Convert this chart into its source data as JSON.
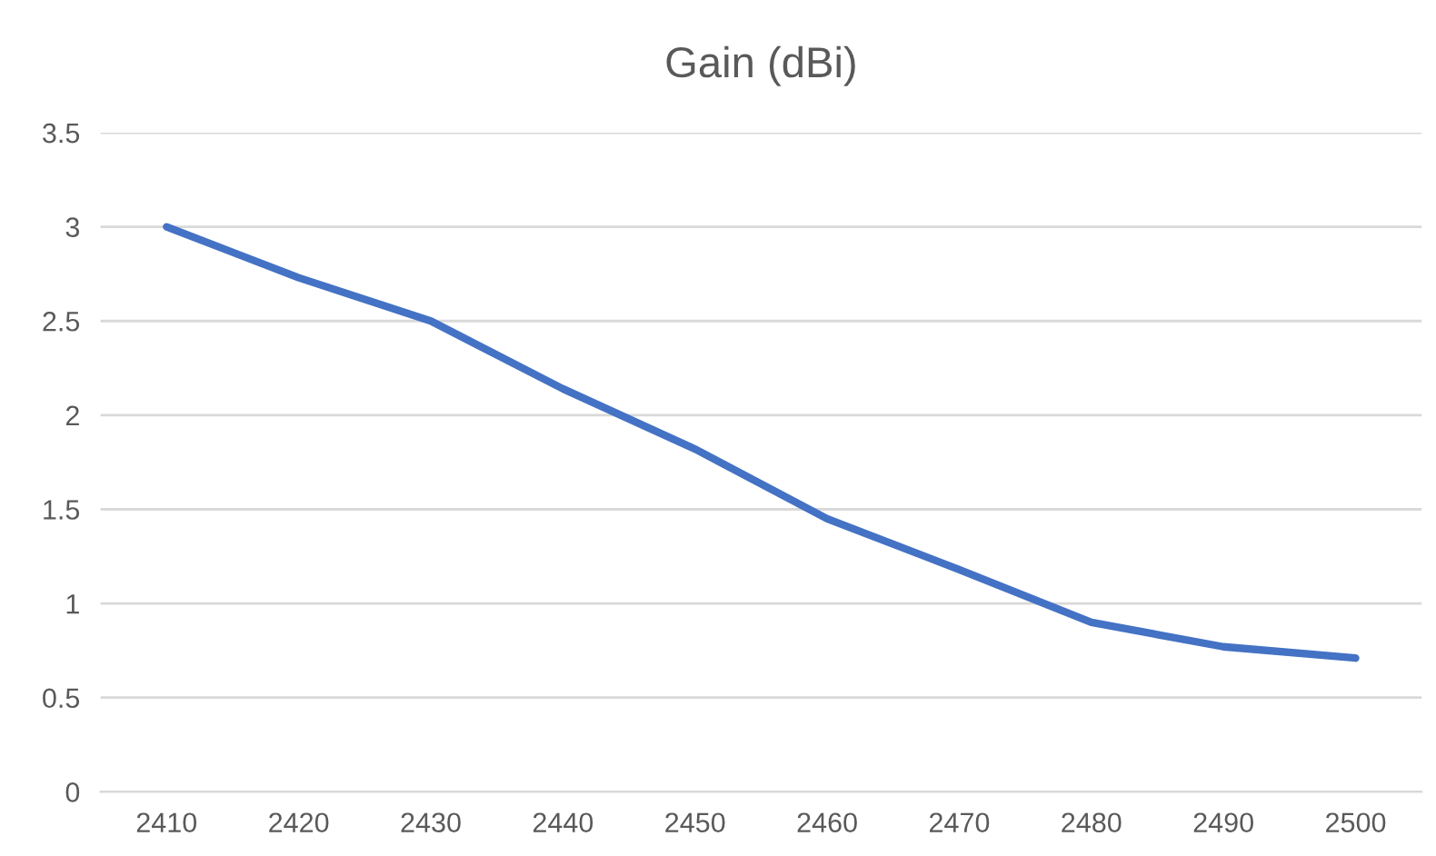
{
  "chart_data": {
    "type": "line",
    "title": "Gain (dBi)",
    "categories": [
      "2410",
      "2420",
      "2430",
      "2440",
      "2450",
      "2460",
      "2470",
      "2480",
      "2490",
      "2500"
    ],
    "series": [
      {
        "color": "#4472c4",
        "values": [
          3.0,
          2.73,
          2.5,
          2.14,
          1.82,
          1.45,
          1.18,
          0.9,
          0.77,
          0.71
        ]
      }
    ],
    "ylim": [
      0,
      3.5
    ],
    "yticks": [
      0,
      0.5,
      1,
      1.5,
      2,
      2.5,
      3,
      3.5
    ],
    "grid": "y",
    "legend": false,
    "marker": "none",
    "line_style": "solid"
  }
}
